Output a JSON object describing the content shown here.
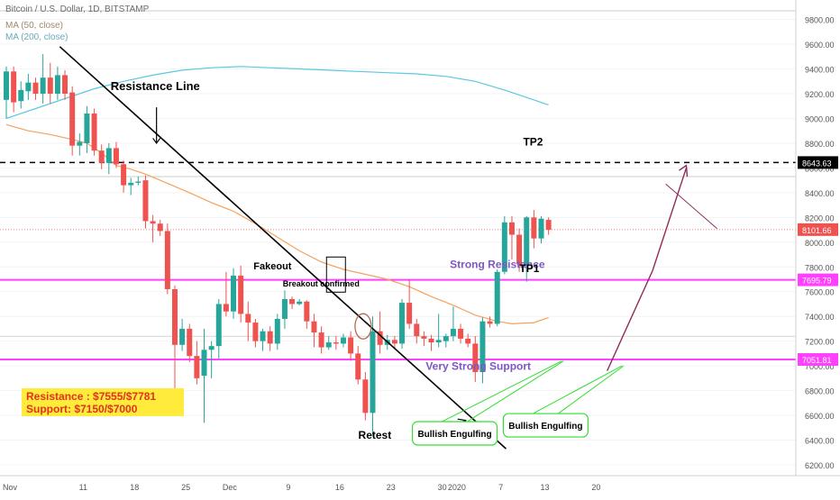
{
  "header": {
    "title": "Bitcoin / U.S. Dollar, 1D, BITSTAMP",
    "ma50_label": "MA (50, close)",
    "ma200_label": "MA (200, close)"
  },
  "info_box": {
    "line1": "Resistance : $7555/$7781",
    "line2": "Support: $7150/$7000"
  },
  "colors": {
    "up": "#26a69a",
    "down": "#ef5350",
    "ma50": "#f5a25d",
    "ma200": "#5bc8e0",
    "magenta": "#ff40ff",
    "annotation_purple": "#7e57c2",
    "target_arrow": "#8e2b5a",
    "callout_green": "#33dd33"
  },
  "chart_data": {
    "type": "candlestick",
    "title": "Bitcoin / U.S. Dollar, 1D, BITSTAMP",
    "ylim": [
      6100,
      10000
    ],
    "y_ticks": [
      6200,
      6400,
      6600,
      6800,
      7000,
      7200,
      7400,
      7600,
      7800,
      8000,
      8200,
      8400,
      8600,
      8800,
      9000,
      9200,
      9400,
      9600,
      9800
    ],
    "x_ticks": [
      {
        "label": "Nov",
        "day": 0
      },
      {
        "label": "11",
        "day": 10
      },
      {
        "label": "18",
        "day": 17
      },
      {
        "label": "25",
        "day": 24
      },
      {
        "label": "Dec",
        "day": 30
      },
      {
        "label": "9",
        "day": 38
      },
      {
        "label": "16",
        "day": 45
      },
      {
        "label": "23",
        "day": 52
      },
      {
        "label": "30",
        "day": 59
      },
      {
        "label": "2020",
        "day": 61
      },
      {
        "label": "7",
        "day": 67
      },
      {
        "label": "13",
        "day": 73
      },
      {
        "label": "20",
        "day": 80
      }
    ],
    "price_labels": [
      {
        "value": 8643.63,
        "text": "8643.63",
        "style": "black"
      },
      {
        "value": 8101.66,
        "text": "8101.66",
        "style": "red"
      },
      {
        "value": 7695.79,
        "text": "7695.79",
        "style": "magenta"
      },
      {
        "value": 7051.81,
        "text": "7051.81",
        "style": "magenta"
      }
    ],
    "horizontal_levels": {
      "tp2_dashed": 8643.63,
      "strong_resistance": 7695.79,
      "very_strong_support": 7051.81,
      "last_price": 8101.66
    },
    "candles": [
      {
        "day": 0,
        "o": 9150,
        "h": 9420,
        "l": 9000,
        "c": 9380
      },
      {
        "day": 1,
        "o": 9380,
        "h": 9420,
        "l": 9050,
        "c": 9130
      },
      {
        "day": 2,
        "o": 9140,
        "h": 9300,
        "l": 9080,
        "c": 9230
      },
      {
        "day": 3,
        "o": 9220,
        "h": 9360,
        "l": 9150,
        "c": 9290
      },
      {
        "day": 4,
        "o": 9290,
        "h": 9330,
        "l": 9150,
        "c": 9200
      },
      {
        "day": 5,
        "o": 9200,
        "h": 9520,
        "l": 9120,
        "c": 9330
      },
      {
        "day": 6,
        "o": 9330,
        "h": 9450,
        "l": 9120,
        "c": 9200
      },
      {
        "day": 7,
        "o": 9200,
        "h": 9420,
        "l": 9150,
        "c": 9350
      },
      {
        "day": 8,
        "o": 9350,
        "h": 9390,
        "l": 9150,
        "c": 9200
      },
      {
        "day": 9,
        "o": 9210,
        "h": 9260,
        "l": 8700,
        "c": 8780
      },
      {
        "day": 10,
        "o": 8780,
        "h": 8880,
        "l": 8700,
        "c": 8810
      },
      {
        "day": 11,
        "o": 8800,
        "h": 9100,
        "l": 8720,
        "c": 9040
      },
      {
        "day": 12,
        "o": 9040,
        "h": 9080,
        "l": 8700,
        "c": 8740
      },
      {
        "day": 13,
        "o": 8740,
        "h": 8790,
        "l": 8590,
        "c": 8640
      },
      {
        "day": 14,
        "o": 8640,
        "h": 8800,
        "l": 8550,
        "c": 8760
      },
      {
        "day": 15,
        "o": 8760,
        "h": 8810,
        "l": 8600,
        "c": 8630
      },
      {
        "day": 16,
        "o": 8630,
        "h": 8660,
        "l": 8400,
        "c": 8460
      },
      {
        "day": 17,
        "o": 8460,
        "h": 8520,
        "l": 8380,
        "c": 8480
      },
      {
        "day": 18,
        "o": 8480,
        "h": 8530,
        "l": 8460,
        "c": 8490
      },
      {
        "day": 19,
        "o": 8500,
        "h": 8540,
        "l": 8110,
        "c": 8170
      },
      {
        "day": 20,
        "o": 8170,
        "h": 8220,
        "l": 8000,
        "c": 8150
      },
      {
        "day": 21,
        "o": 8150,
        "h": 8180,
        "l": 8050,
        "c": 8090
      },
      {
        "day": 22,
        "o": 8090,
        "h": 8150,
        "l": 7580,
        "c": 7620
      },
      {
        "day": 23,
        "o": 7620,
        "h": 7650,
        "l": 6800,
        "c": 7170
      },
      {
        "day": 24,
        "o": 7170,
        "h": 7380,
        "l": 7120,
        "c": 7300
      },
      {
        "day": 25,
        "o": 7300,
        "h": 7340,
        "l": 7030,
        "c": 7080
      },
      {
        "day": 26,
        "o": 7080,
        "h": 7200,
        "l": 6850,
        "c": 6900
      },
      {
        "day": 27,
        "o": 6920,
        "h": 7300,
        "l": 6540,
        "c": 7130
      },
      {
        "day": 28,
        "o": 7130,
        "h": 7200,
        "l": 6900,
        "c": 7160
      },
      {
        "day": 29,
        "o": 7160,
        "h": 7540,
        "l": 7060,
        "c": 7500
      },
      {
        "day": 30,
        "o": 7500,
        "h": 7760,
        "l": 7400,
        "c": 7440
      },
      {
        "day": 31,
        "o": 7440,
        "h": 7790,
        "l": 7380,
        "c": 7730
      },
      {
        "day": 32,
        "o": 7730,
        "h": 7810,
        "l": 7350,
        "c": 7420
      },
      {
        "day": 33,
        "o": 7420,
        "h": 7520,
        "l": 7200,
        "c": 7350
      },
      {
        "day": 34,
        "o": 7350,
        "h": 7380,
        "l": 7150,
        "c": 7200
      },
      {
        "day": 35,
        "o": 7200,
        "h": 7300,
        "l": 7120,
        "c": 7280
      },
      {
        "day": 36,
        "o": 7280,
        "h": 7320,
        "l": 7120,
        "c": 7180
      },
      {
        "day": 37,
        "o": 7180,
        "h": 7420,
        "l": 7130,
        "c": 7380
      },
      {
        "day": 38,
        "o": 7380,
        "h": 7610,
        "l": 7300,
        "c": 7540
      },
      {
        "day": 39,
        "o": 7540,
        "h": 7560,
        "l": 7460,
        "c": 7500
      },
      {
        "day": 40,
        "o": 7500,
        "h": 7540,
        "l": 7490,
        "c": 7520
      },
      {
        "day": 41,
        "o": 7520,
        "h": 7530,
        "l": 7300,
        "c": 7360
      },
      {
        "day": 42,
        "o": 7360,
        "h": 7420,
        "l": 7150,
        "c": 7270
      },
      {
        "day": 43,
        "o": 7270,
        "h": 7320,
        "l": 7100,
        "c": 7150
      },
      {
        "day": 44,
        "o": 7150,
        "h": 7240,
        "l": 7130,
        "c": 7190
      },
      {
        "day": 45,
        "o": 7190,
        "h": 7240,
        "l": 7130,
        "c": 7180
      },
      {
        "day": 46,
        "o": 7180,
        "h": 7260,
        "l": 7150,
        "c": 7230
      },
      {
        "day": 47,
        "o": 7230,
        "h": 7280,
        "l": 7040,
        "c": 7100
      },
      {
        "day": 48,
        "o": 7100,
        "h": 7160,
        "l": 6850,
        "c": 6890
      },
      {
        "day": 49,
        "o": 6890,
        "h": 6950,
        "l": 6560,
        "c": 6620
      },
      {
        "day": 50,
        "o": 6620,
        "h": 7400,
        "l": 6430,
        "c": 7280
      },
      {
        "day": 51,
        "o": 7280,
        "h": 7440,
        "l": 7100,
        "c": 7170
      },
      {
        "day": 52,
        "o": 7170,
        "h": 7250,
        "l": 7130,
        "c": 7210
      },
      {
        "day": 53,
        "o": 7210,
        "h": 7240,
        "l": 7140,
        "c": 7180
      },
      {
        "day": 54,
        "o": 7180,
        "h": 7540,
        "l": 7140,
        "c": 7510
      },
      {
        "day": 55,
        "o": 7510,
        "h": 7700,
        "l": 7300,
        "c": 7340
      },
      {
        "day": 56,
        "o": 7340,
        "h": 7380,
        "l": 7180,
        "c": 7240
      },
      {
        "day": 57,
        "o": 7240,
        "h": 7280,
        "l": 7160,
        "c": 7220
      },
      {
        "day": 58,
        "o": 7220,
        "h": 7250,
        "l": 7120,
        "c": 7190
      },
      {
        "day": 59,
        "o": 7190,
        "h": 7420,
        "l": 7150,
        "c": 7210
      },
      {
        "day": 60,
        "o": 7200,
        "h": 7260,
        "l": 7150,
        "c": 7240
      },
      {
        "day": 61,
        "o": 7240,
        "h": 7480,
        "l": 7200,
        "c": 7300
      },
      {
        "day": 62,
        "o": 7300,
        "h": 7340,
        "l": 7180,
        "c": 7220
      },
      {
        "day": 63,
        "o": 7220,
        "h": 7260,
        "l": 7150,
        "c": 7180
      },
      {
        "day": 64,
        "o": 7180,
        "h": 7240,
        "l": 6870,
        "c": 6950
      },
      {
        "day": 65,
        "o": 6950,
        "h": 7390,
        "l": 6860,
        "c": 7360
      },
      {
        "day": 66,
        "o": 7360,
        "h": 7400,
        "l": 7310,
        "c": 7340
      },
      {
        "day": 67,
        "o": 7340,
        "h": 7780,
        "l": 7320,
        "c": 7760
      },
      {
        "day": 68,
        "o": 7760,
        "h": 8210,
        "l": 7740,
        "c": 8160
      },
      {
        "day": 69,
        "o": 8160,
        "h": 8210,
        "l": 7860,
        "c": 8060
      },
      {
        "day": 70,
        "o": 8060,
        "h": 8110,
        "l": 7760,
        "c": 7820
      },
      {
        "day": 71,
        "o": 7820,
        "h": 8210,
        "l": 7680,
        "c": 8200
      },
      {
        "day": 72,
        "o": 8200,
        "h": 8260,
        "l": 7950,
        "c": 8030
      },
      {
        "day": 73,
        "o": 8030,
        "h": 8210,
        "l": 7990,
        "c": 8190
      },
      {
        "day": 74,
        "o": 8180,
        "h": 8200,
        "l": 8060,
        "c": 8100
      }
    ],
    "ma50": [
      [
        0,
        8950
      ],
      [
        3,
        8900
      ],
      [
        6,
        8870
      ],
      [
        9,
        8830
      ],
      [
        11,
        8800
      ],
      [
        13,
        8720
      ],
      [
        15,
        8620
      ],
      [
        17,
        8590
      ],
      [
        19,
        8550
      ],
      [
        21,
        8500
      ],
      [
        25,
        8400
      ],
      [
        28,
        8320
      ],
      [
        31,
        8250
      ],
      [
        34,
        8150
      ],
      [
        37,
        8040
      ],
      [
        40,
        7930
      ],
      [
        43,
        7840
      ],
      [
        46,
        7780
      ],
      [
        49,
        7740
      ],
      [
        52,
        7700
      ],
      [
        55,
        7640
      ],
      [
        58,
        7560
      ],
      [
        61,
        7490
      ],
      [
        64,
        7410
      ],
      [
        67,
        7360
      ],
      [
        69,
        7340
      ],
      [
        72,
        7350
      ],
      [
        74,
        7390
      ]
    ],
    "ma200": [
      [
        0,
        9000
      ],
      [
        4,
        9080
      ],
      [
        8,
        9160
      ],
      [
        12,
        9240
      ],
      [
        16,
        9300
      ],
      [
        20,
        9350
      ],
      [
        24,
        9390
      ],
      [
        28,
        9410
      ],
      [
        32,
        9420
      ],
      [
        36,
        9410
      ],
      [
        40,
        9400
      ],
      [
        44,
        9390
      ],
      [
        48,
        9380
      ],
      [
        52,
        9370
      ],
      [
        56,
        9360
      ],
      [
        60,
        9340
      ],
      [
        64,
        9300
      ],
      [
        68,
        9230
      ],
      [
        72,
        9150
      ],
      [
        74,
        9110
      ]
    ],
    "annotations": [
      {
        "text": "Resistance Line",
        "day": 13.5,
        "y": 9230,
        "color": "#000000",
        "bold": true,
        "size": 13
      },
      {
        "text": "Fakeout",
        "day": 33,
        "y": 7780,
        "color": "#000000",
        "bold": true,
        "size": 11
      },
      {
        "text": "Breakout confirmed",
        "day": 37,
        "y": 7640,
        "color": "#000000",
        "bold": true,
        "size": 9
      },
      {
        "text": "Retest",
        "day": 47.3,
        "y": 6410,
        "color": "#000000",
        "bold": true,
        "size": 12
      },
      {
        "text": "Strong Resistance",
        "day": 59.8,
        "y": 7790,
        "color": "#7e57c2",
        "bold": true,
        "size": 12
      },
      {
        "text": "Very Strong Support",
        "day": 56.5,
        "y": 6970,
        "color": "#7e57c2",
        "bold": true,
        "size": 12
      },
      {
        "text": "TP1",
        "day": 69.3,
        "y": 7760,
        "color": "#000000",
        "bold": true,
        "size": 12
      },
      {
        "text": "TP2",
        "day": 69.8,
        "y": 8780,
        "color": "#000000",
        "bold": true,
        "size": 12
      }
    ],
    "callouts": [
      {
        "text": "Bullish Engulfing",
        "day": 61.2,
        "y": 6455
      },
      {
        "text": "Bullish Engulfing",
        "day": 73.6,
        "y": 6520
      }
    ]
  }
}
